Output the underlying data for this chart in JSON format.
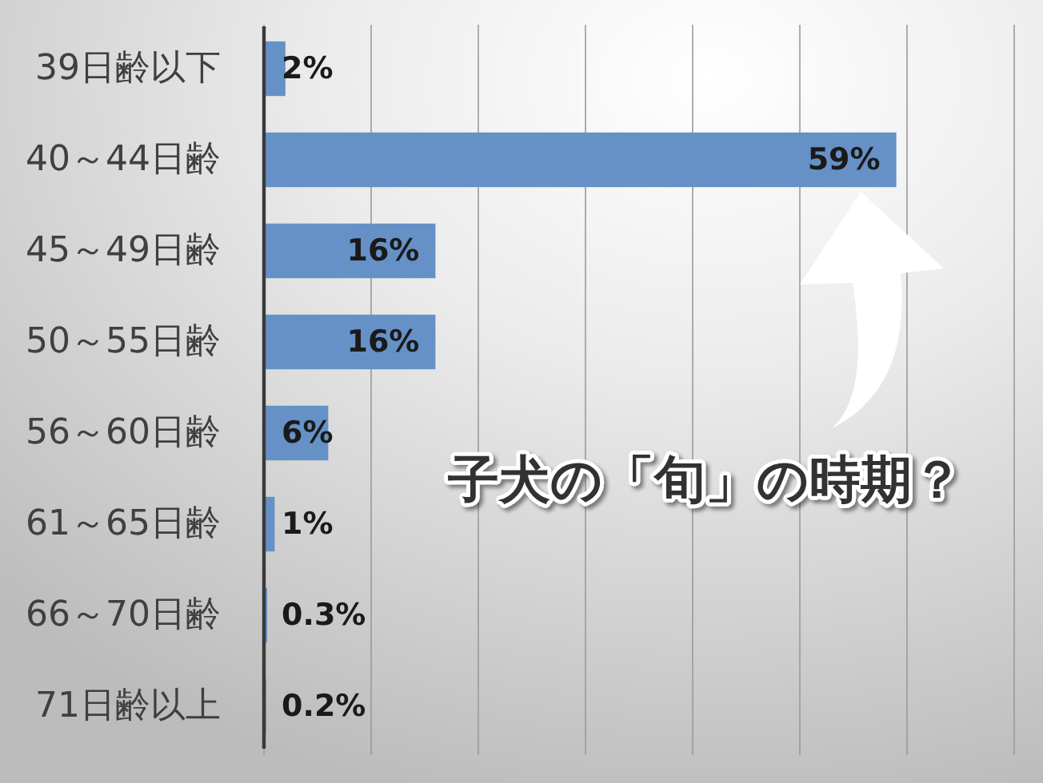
{
  "chart_data": {
    "type": "bar",
    "orientation": "horizontal",
    "categories": [
      "39日齢以下",
      "40～44日齢",
      "45～49日齢",
      "50～55日齢",
      "56～60日齢",
      "61～65日齢",
      "66～70日齢",
      "71日齢以上"
    ],
    "values": [
      2,
      59,
      16,
      16,
      6,
      1,
      0.3,
      0.2
    ],
    "value_labels": [
      "2%",
      "59%",
      "16%",
      "16%",
      "6%",
      "1%",
      "0.3%",
      "0.2%"
    ],
    "color": "#6591c7",
    "xlim": [
      0,
      70
    ],
    "xticks": [
      {
        "value": 0,
        "label": null
      },
      {
        "value": 10,
        "label": null
      },
      {
        "value": 20,
        "label": null
      },
      {
        "value": 30,
        "label": null
      },
      {
        "value": 40,
        "label": null
      },
      {
        "value": 50,
        "label": null
      },
      {
        "value": 60,
        "label": null
      },
      {
        "value": 70,
        "label": null
      }
    ],
    "grid": "x",
    "tick_labels": "y",
    "annotations": [
      "子犬の「旬」の時期？"
    ]
  }
}
